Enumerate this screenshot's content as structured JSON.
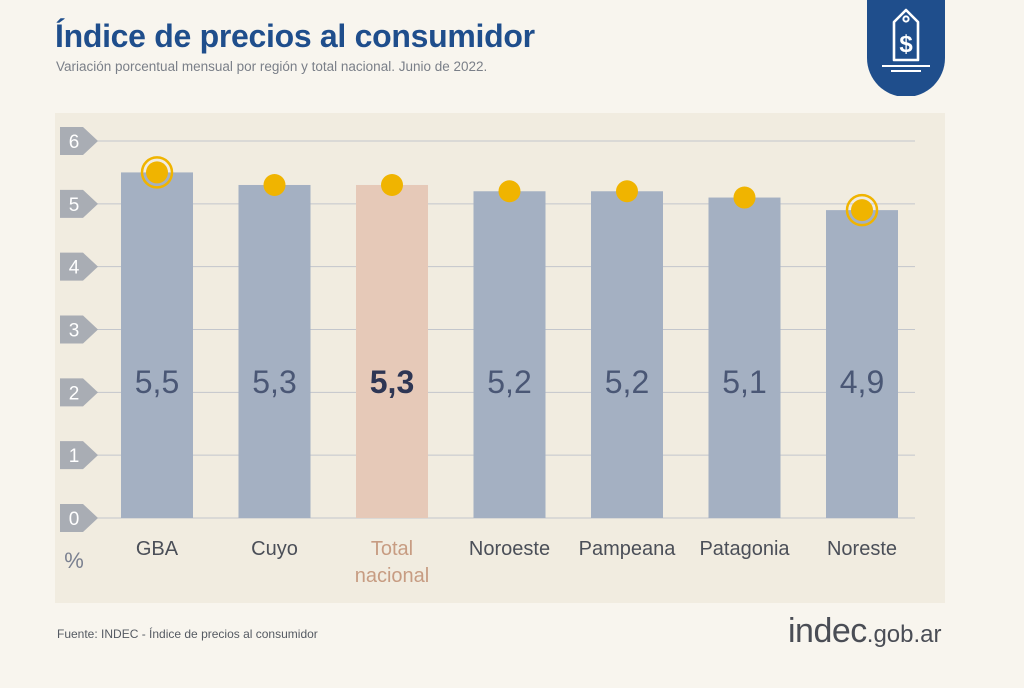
{
  "header": {
    "title": "Índice de precios al consumidor",
    "subtitle": "Variación porcentual mensual por región y total nacional. Junio de 2022."
  },
  "footer": {
    "source": "Fuente: INDEC - Índice de precios al consumidor",
    "logo_main": "indec",
    "logo_suffix": ".gob.ar"
  },
  "icons": {
    "badge": "price-tag-dollar-icon"
  },
  "colors": {
    "title": "#1f4e8c",
    "bar": "#a4b0c2",
    "bar_highlight": "#e6c9b8",
    "bar_label": "#4a5775",
    "bar_label_highlight": "#2e3654",
    "marker": "#f0b400",
    "tick_badge": "#a9adb4",
    "background": "#f8f5ee",
    "panel": "#f1ece0"
  },
  "chart_data": {
    "type": "bar",
    "title": "Índice de precios al consumidor",
    "subtitle": "Variación porcentual mensual por región y total nacional. Junio de 2022.",
    "ylabel": "%",
    "ylim": [
      0,
      6
    ],
    "yticks": [
      0,
      1,
      2,
      3,
      4,
      5,
      6
    ],
    "grid": true,
    "legend": "none",
    "categories": [
      "GBA",
      "Cuyo",
      "Total nacional",
      "Noroeste",
      "Pampeana",
      "Patagonia",
      "Noreste"
    ],
    "category_lines": [
      [
        "GBA"
      ],
      [
        "Cuyo"
      ],
      [
        "Total",
        "nacional"
      ],
      [
        "Noroeste"
      ],
      [
        "Pampeana"
      ],
      [
        "Patagonia"
      ],
      [
        "Noreste"
      ]
    ],
    "values": [
      5.5,
      5.3,
      5.3,
      5.2,
      5.2,
      5.1,
      4.9
    ],
    "value_labels": [
      "5,5",
      "5,3",
      "5,3",
      "5,2",
      "5,2",
      "5,1",
      "4,9"
    ],
    "highlight_category": "Total nacional",
    "ringed_markers": [
      "GBA",
      "Noreste"
    ]
  }
}
